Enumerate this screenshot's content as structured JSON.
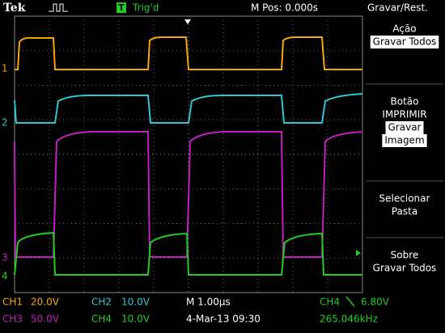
{
  "header": {
    "brand": "Tek",
    "trigger_icon": "T",
    "trigger_status": "Trig'd",
    "position": "M Pos: 0.000s",
    "menu_title": "Gravar/Rest."
  },
  "channel_markers": [
    "1",
    "2",
    "3",
    "4"
  ],
  "menu": [
    {
      "lines": [
        "Ação"
      ],
      "highlight": [
        "Gravar Todos"
      ]
    },
    {
      "lines": [
        "Botão",
        "IMPRIMIR"
      ],
      "highlight": [
        "Gravar",
        "Imagem"
      ]
    },
    {
      "lines": [
        "Selecionar",
        "Pasta"
      ],
      "highlight": []
    },
    {
      "lines": [
        "Sobre",
        "Gravar Todos"
      ],
      "highlight": []
    }
  ],
  "status": {
    "ch1": {
      "channel": "CH1",
      "scale": "20.0V"
    },
    "ch2": {
      "channel": "CH2",
      "scale": "10.0V"
    },
    "ch3": {
      "channel": "CH3",
      "scale": "50.0V"
    },
    "ch4": {
      "channel": "CH4",
      "scale": "10.0V"
    },
    "timebase": "M 1.00µs",
    "trigger": {
      "source": "CH4",
      "level": "6.80V"
    },
    "date": "4-Mar-13 09:30",
    "frequency": "265.046kHz"
  }
}
